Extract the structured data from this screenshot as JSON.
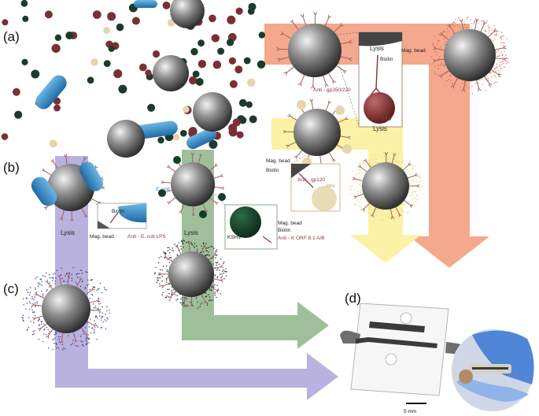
{
  "panels": {
    "a": "(a)",
    "b": "(b)",
    "c": "(c)",
    "d": "(d)"
  },
  "lysis": "Lysis",
  "a_inset": {
    "biotin": "Biotin",
    "bead": "Mag. bead",
    "anti": "Anti - gp350/220",
    "virus": "EBV"
  },
  "hiv_inset": {
    "bead": "Mag. bead",
    "biotin": "Biotin",
    "anti": "Anti - gp120",
    "virus": "HIV"
  },
  "b_inset": {
    "biotin": "Biotin",
    "ecoli": "E. coli",
    "bead": "Mag. bead",
    "anti": "Anti - E. coli LPS"
  },
  "k_inset": {
    "virus": "KSHV",
    "bead": "Mag. bead",
    "biotin": "Biotin",
    "anti": "Anti - K ORF 8.1 A/B"
  },
  "scalebar": "5 mm",
  "colors": {
    "ebv_arrow": "#f3a98d",
    "hiv_arrow": "#fbf2a6",
    "ecoli_arrow": "#b9b0dd",
    "kshv_arrow": "#9fbe9a",
    "bacteria": "#2f86c4",
    "ebv": "#8b3a3a"
  }
}
